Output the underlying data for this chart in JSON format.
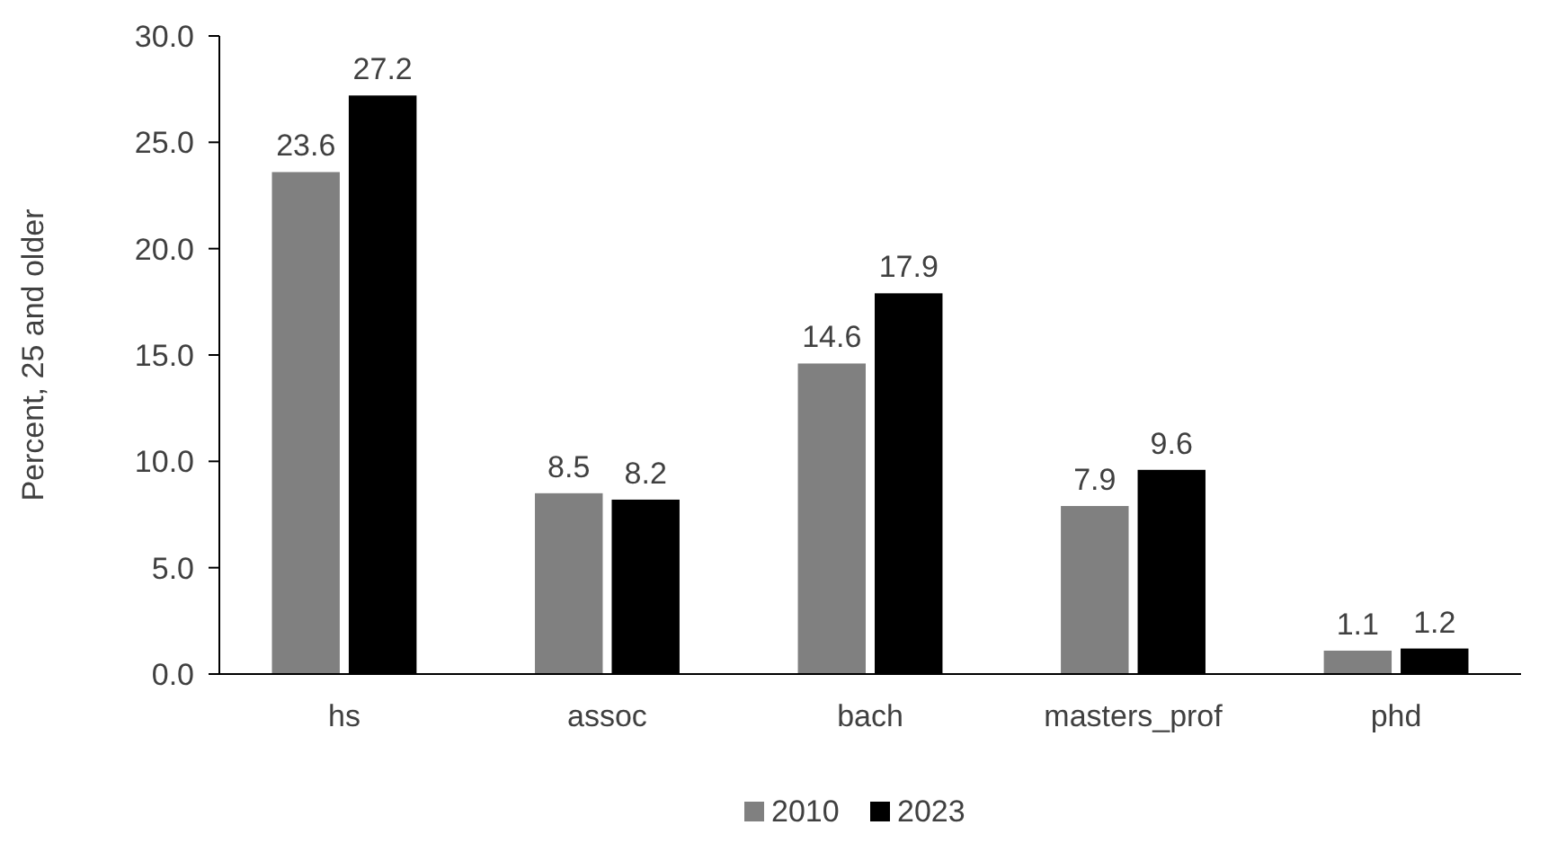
{
  "chart_data": {
    "type": "bar",
    "ylabel": "Percent, 25 and older",
    "categories": [
      "hs",
      "assoc",
      "bach",
      "masters_prof",
      "phd"
    ],
    "series": [
      {
        "name": "2010",
        "color": "#808080",
        "values": [
          23.6,
          8.5,
          14.6,
          7.9,
          1.1
        ]
      },
      {
        "name": "2023",
        "color": "#000000",
        "values": [
          27.2,
          8.2,
          17.9,
          9.6,
          1.2
        ]
      }
    ],
    "ylim": [
      0,
      30
    ],
    "yticks": [
      {
        "value": 0,
        "label": "0.0"
      },
      {
        "value": 5,
        "label": "5.0"
      },
      {
        "value": 10,
        "label": "10.0"
      },
      {
        "value": 15,
        "label": "15.0"
      },
      {
        "value": 20,
        "label": "20.0"
      },
      {
        "value": 25,
        "label": "25.0"
      },
      {
        "value": 30,
        "label": "30.0"
      }
    ],
    "data_labels": true,
    "grid": false,
    "legend": "bottom"
  }
}
